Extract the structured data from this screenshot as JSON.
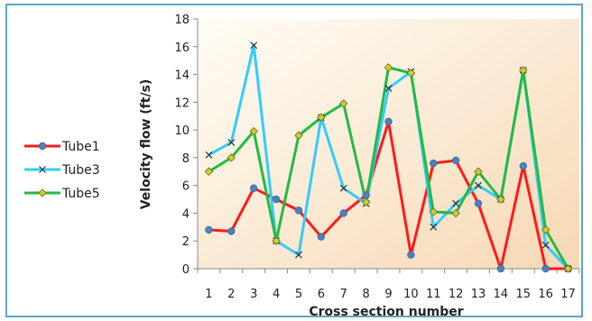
{
  "chart_data": {
    "type": "line",
    "title": "",
    "xlabel": "Cross section number",
    "ylabel": "Velocity flow (ft/s)",
    "categories": [
      "1",
      "2",
      "3",
      "4",
      "5",
      "6",
      "7",
      "8",
      "9",
      "10",
      "11",
      "12",
      "13",
      "14",
      "15",
      "16",
      "17"
    ],
    "ylim": [
      0,
      18
    ],
    "yticks": [
      "0",
      "2",
      "4",
      "6",
      "8",
      "10",
      "12",
      "14",
      "16",
      "18"
    ],
    "grid": false,
    "legend_position": "left",
    "background_gradient": [
      "#fffdf6",
      "#f6d8b4"
    ],
    "series": [
      {
        "name": "Tube1",
        "color": "#ff1a1a",
        "marker": "circle",
        "marker_color": "#4f81bd",
        "values": [
          2.8,
          2.7,
          5.8,
          5.0,
          4.2,
          2.3,
          4.0,
          5.3,
          10.6,
          1.0,
          7.6,
          7.8,
          4.7,
          0.0,
          7.4,
          0.0,
          0.0
        ]
      },
      {
        "name": "Tube3",
        "color": "#33ccff",
        "marker": "x",
        "marker_color": "#333333",
        "values": [
          8.2,
          9.1,
          16.1,
          2.0,
          1.0,
          10.9,
          5.8,
          4.7,
          13.0,
          14.2,
          3.0,
          4.7,
          6.0,
          5.0,
          14.3,
          1.7,
          0.0
        ]
      },
      {
        "name": "Tube5",
        "color": "#22bb44",
        "marker": "diamond",
        "marker_color": "#cccc33",
        "values": [
          7.0,
          8.0,
          9.9,
          2.0,
          9.6,
          10.9,
          11.9,
          4.8,
          14.5,
          14.1,
          4.1,
          4.0,
          7.0,
          5.0,
          14.3,
          2.8,
          0.0
        ]
      }
    ]
  }
}
